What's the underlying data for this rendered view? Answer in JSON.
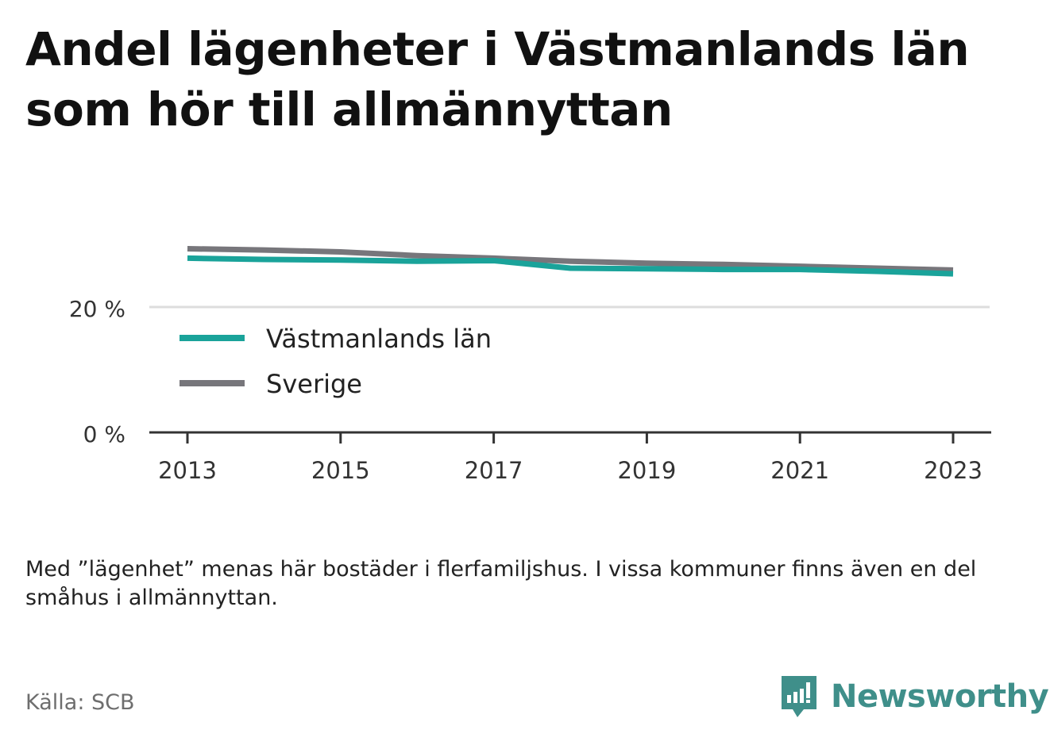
{
  "title": "Andel lägenheter i Västmanlands län som hör till allmännyttan",
  "note": "Med ”lägenhet” menas här bostäder i flerfamiljshus. I vissa kommuner finns även en del småhus i allmännyttan.",
  "source": "Källa: SCB",
  "brand": "Newsworthy",
  "chart_data": {
    "type": "line",
    "x": [
      2013,
      2014,
      2015,
      2016,
      2017,
      2018,
      2019,
      2020,
      2021,
      2022,
      2023
    ],
    "x_tick_labels": [
      "2013",
      "2015",
      "2017",
      "2019",
      "2021",
      "2023"
    ],
    "y_tick_labels": [
      "0 %",
      "20 %"
    ],
    "y_ticks": [
      0,
      20
    ],
    "ylim": [
      0,
      35
    ],
    "grid": true,
    "legend_position": "bottom-left inside plot",
    "series": [
      {
        "name": "Västmanlands län",
        "color": "#1aa39a",
        "values": [
          27.8,
          27.6,
          27.5,
          27.3,
          27.4,
          26.2,
          26.1,
          26.0,
          26.0,
          25.7,
          25.3
        ]
      },
      {
        "name": "Sverige",
        "color": "#77767b",
        "values": [
          29.3,
          29.1,
          28.8,
          28.2,
          27.8,
          27.3,
          27.0,
          26.8,
          26.5,
          26.2,
          25.9
        ]
      }
    ]
  }
}
